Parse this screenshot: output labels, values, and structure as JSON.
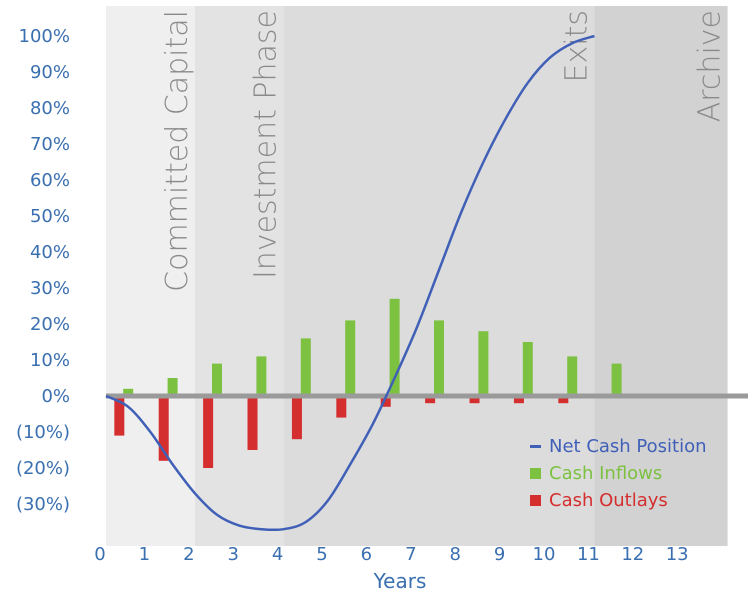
{
  "chart_data": {
    "type": "bar",
    "xlabel": "Years",
    "ylabel": "",
    "x_ticks": [
      "0",
      "1",
      "2",
      "3",
      "4",
      "5",
      "6",
      "7",
      "8",
      "9",
      "10",
      "11",
      "12",
      "13"
    ],
    "y_ticks": [
      "100%",
      "90%",
      "80%",
      "70%",
      "60%",
      "50%",
      "40%",
      "30%",
      "20%",
      "10%",
      "0%",
      "(10%)",
      "(20%)",
      "(30%)"
    ],
    "xlim": [
      0,
      14
    ],
    "ylim": [
      -37,
      105
    ],
    "phases": [
      {
        "label": "Committed Capital",
        "start": 0,
        "end": 2,
        "color": "#efefef"
      },
      {
        "label": "Investment Phase",
        "start": 2,
        "end": 4,
        "color": "#e3e3e3"
      },
      {
        "label": "Exits",
        "start": 4,
        "end": 11,
        "color": "#dcdcdc"
      },
      {
        "label": "Archive",
        "start": 11,
        "end": 14,
        "color": "#d2d2d2"
      }
    ],
    "series": [
      {
        "name": "Net Cash Position",
        "type": "line",
        "color": "#4060b8",
        "x": [
          0,
          0.5,
          1,
          1.5,
          2,
          2.5,
          3,
          3.5,
          4,
          4.5,
          5,
          5.5,
          6,
          6.5,
          7,
          7.5,
          8,
          8.5,
          9,
          9.5,
          10,
          10.5,
          11
        ],
        "values": [
          0,
          -3,
          -10,
          -19,
          -27,
          -33,
          -36,
          -37,
          -37,
          -35,
          -29,
          -19,
          -8,
          5,
          19,
          35,
          51,
          65,
          77,
          87,
          94,
          98,
          100
        ]
      },
      {
        "name": "Cash Inflows",
        "type": "bar",
        "color": "#7dc141",
        "x": [
          0.5,
          1.5,
          2.5,
          3.5,
          4.5,
          5.5,
          6.5,
          7.5,
          8.5,
          9.5,
          10.5,
          11.5
        ],
        "values": [
          2,
          5,
          9,
          11,
          16,
          21,
          27,
          21,
          18,
          15,
          11,
          9
        ]
      },
      {
        "name": "Cash Outlays",
        "type": "bar",
        "color": "#d42e2e",
        "x": [
          0.3,
          1.3,
          2.3,
          3.3,
          4.3,
          5.3,
          6.3,
          7.3,
          8.3,
          9.3,
          10.3
        ],
        "values": [
          -11,
          -18,
          -20,
          -15,
          -12,
          -6,
          -3,
          -2,
          -2,
          -2,
          -2
        ]
      }
    ],
    "legend_position": "bottom-right"
  }
}
